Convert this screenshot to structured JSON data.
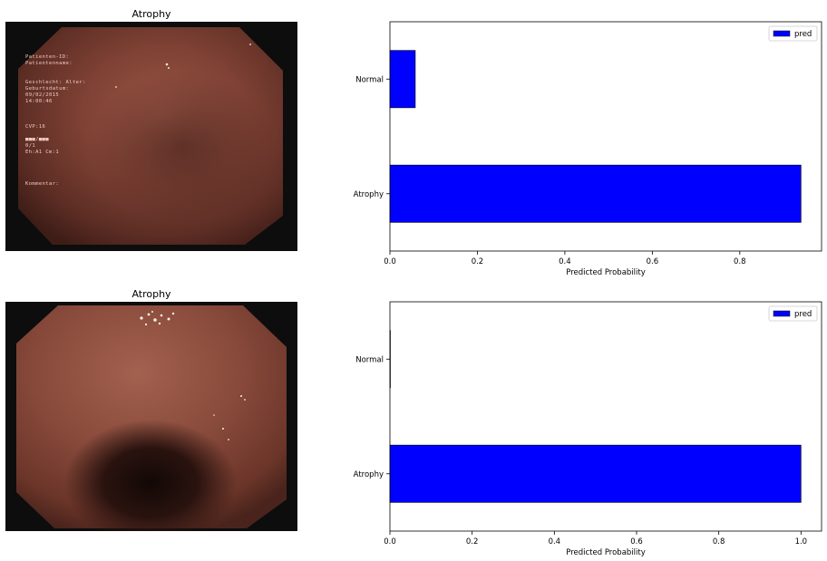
{
  "panels": [
    {
      "image": {
        "title": "Atrophy",
        "overlay_lines": [
          "Patienten-ID:",
          "Patientenname:",
          "",
          "",
          "Geschlecht:  Alter:",
          "Geburtsdatum:",
          "09/02/2015",
          "14:00:46",
          "",
          "",
          "",
          "CVP:16",
          "",
          "",
          "0/1",
          "Eh:A1 Cm:1",
          "",
          "",
          "",
          "",
          "Kommentar:"
        ],
        "overlay_bar_line": "■■■/■■■"
      },
      "chart_data": {
        "type": "bar",
        "orientation": "horizontal",
        "categories": [
          "Atrophy",
          "Normal"
        ],
        "series": [
          {
            "name": "pred",
            "values": [
              0.94,
              0.058
            ]
          }
        ],
        "xlabel": "Predicted Probability",
        "xlim": [
          0,
          0.987
        ],
        "xticks": [
          0.0,
          0.2,
          0.4,
          0.6,
          0.8
        ],
        "xtick_labels": [
          "0.0",
          "0.2",
          "0.4",
          "0.6",
          "0.8"
        ],
        "legend": "top-right",
        "bar_color": "#0000ff",
        "grid": false
      }
    },
    {
      "image": {
        "title": "Atrophy",
        "overlay_lines": [],
        "overlay_bar_line": ""
      },
      "chart_data": {
        "type": "bar",
        "orientation": "horizontal",
        "categories": [
          "Atrophy",
          "Normal"
        ],
        "series": [
          {
            "name": "pred",
            "values": [
              1.0,
              0.0005
            ]
          }
        ],
        "xlabel": "Predicted Probability",
        "xlim": [
          0,
          1.05
        ],
        "xticks": [
          0.0,
          0.2,
          0.4,
          0.6,
          0.8,
          1.0
        ],
        "xtick_labels": [
          "0.0",
          "0.2",
          "0.4",
          "0.6",
          "0.8",
          "1.0"
        ],
        "legend": "top-right",
        "bar_color": "#0000ff",
        "grid": false
      }
    }
  ]
}
